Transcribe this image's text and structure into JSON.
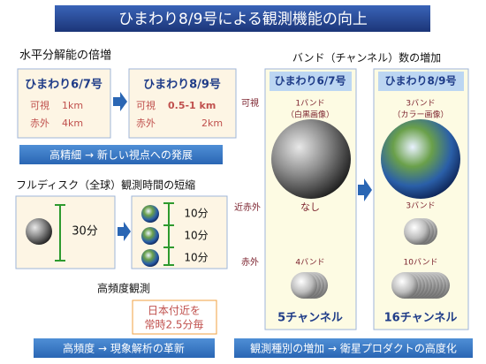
{
  "title": "ひまわり8/9号による観測機能の向上",
  "resolution": {
    "heading": "水平分解能の倍増",
    "before": {
      "name": "ひまわり6/7号",
      "visible_label": "可視",
      "visible_value": "1km",
      "infrared_label": "赤外",
      "infrared_value": "4km"
    },
    "after": {
      "name": "ひまわり8/9号",
      "visible_label": "可視",
      "visible_value": "0.5-1 km",
      "infrared_label": "赤外",
      "infrared_value": "2km"
    },
    "result": "高精細 → 新しい視点への発展"
  },
  "frequency": {
    "heading": "フルディスク（全球）観測時間の短縮",
    "before_interval": "30分",
    "after_intervals": [
      "10分",
      "10分",
      "10分"
    ],
    "rapid_heading": "高頻度観測",
    "rapid_text": [
      "日本付近を",
      "常時2.5分毎"
    ],
    "result": "高頻度 → 現象解析の革新"
  },
  "bands": {
    "heading": "バンド（チャンネル）数の増加",
    "rows": [
      "可視",
      "近赤外",
      "赤外"
    ],
    "before": {
      "name": "ひまわり6/7号",
      "visible": [
        "1バンド",
        "（白黒画像）"
      ],
      "near_infrared": "なし",
      "infrared": "4バンド",
      "total": "5チャンネル"
    },
    "after": {
      "name": "ひまわり8/9号",
      "visible": [
        "3バンド",
        "（カラー画像）"
      ],
      "near_infrared": "3バンド",
      "infrared": "10バンド",
      "total": "16チャンネル"
    },
    "result": "観測種別の増加 → 衛星プロダクトの高度化"
  }
}
